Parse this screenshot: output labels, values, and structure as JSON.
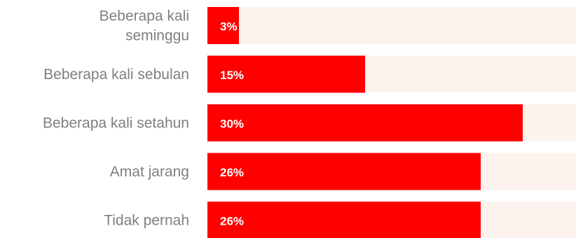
{
  "chart_data": {
    "type": "bar",
    "orientation": "horizontal",
    "categories": [
      [
        "Beberapa kali",
        "seminggu"
      ],
      [
        "Beberapa kali sebulan"
      ],
      [
        "Beberapa kali setahun"
      ],
      [
        "Amat jarang"
      ],
      [
        "Tidak pernah"
      ]
    ],
    "values": [
      3,
      15,
      30,
      26,
      26
    ],
    "value_labels": [
      "3%",
      "15%",
      "30%",
      "26%",
      "26%"
    ],
    "xlim": [
      0,
      35
    ],
    "title": "",
    "xlabel": "",
    "ylabel": "",
    "grid": false,
    "legend": "none",
    "colors": {
      "bar": "#ff0000",
      "track": "#fdf3ee",
      "category_text": "#7f7f7f",
      "value_text": "#ffffff"
    }
  }
}
